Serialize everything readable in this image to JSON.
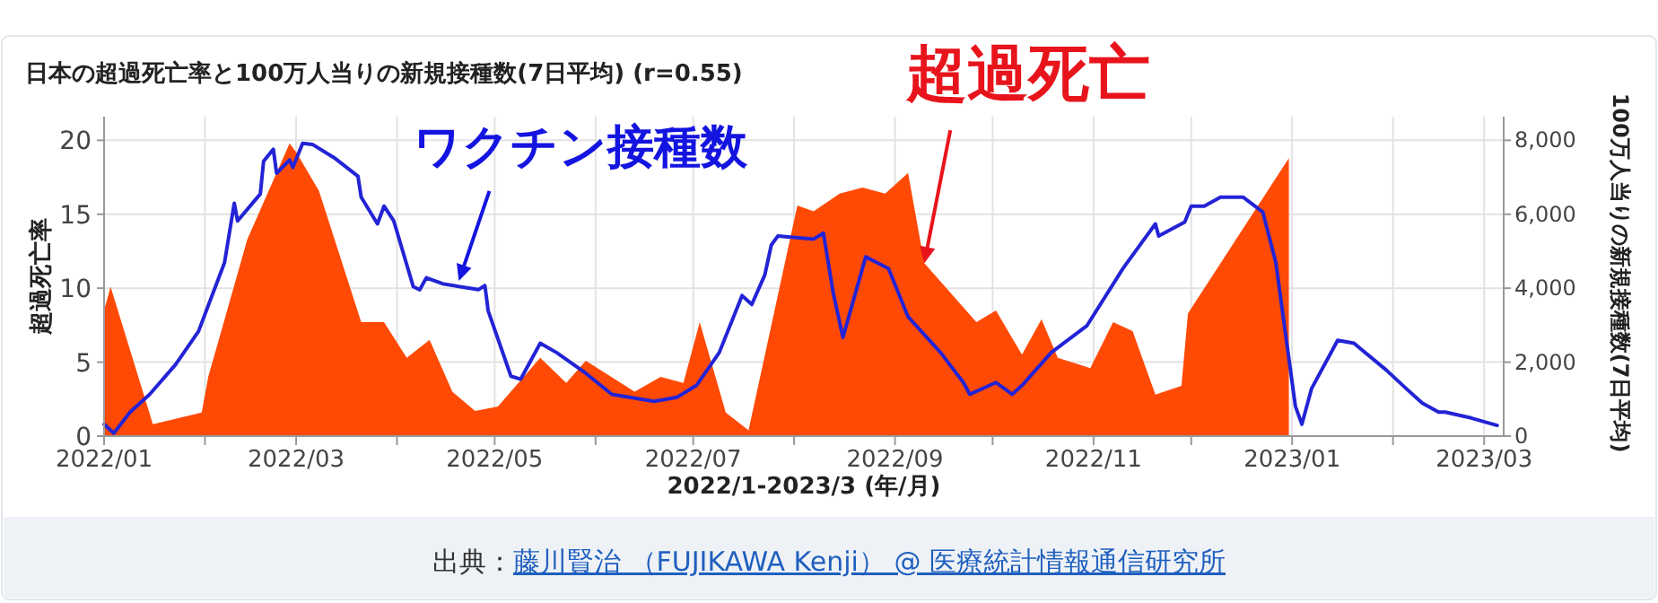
{
  "chart_data": {
    "type": "area",
    "title": "日本の超過死亡率と100万人当りの新規接種数(7日平均) (r=0.55)",
    "xlabel": "2022/1-2023/3 (年/月)",
    "ylabel": "超過死亡率",
    "y2label": "100万人当りの新規接種数(7日平均)",
    "xlim": [
      "2022-01-01",
      "2023-03-07"
    ],
    "xticks": [
      {
        "value": "2022-01",
        "label": "2022/01"
      },
      {
        "value": "2022-02",
        "label": null
      },
      {
        "value": "2022-03",
        "label": "2022/03"
      },
      {
        "value": "2022-04",
        "label": null
      },
      {
        "value": "2022-05",
        "label": "2022/05"
      },
      {
        "value": "2022-06",
        "label": null
      },
      {
        "value": "2022-07",
        "label": "2022/07"
      },
      {
        "value": "2022-08",
        "label": null
      },
      {
        "value": "2022-09",
        "label": "2022/09"
      },
      {
        "value": "2022-10",
        "label": null
      },
      {
        "value": "2022-11",
        "label": "2022/11"
      },
      {
        "value": "2022-12",
        "label": null
      },
      {
        "value": "2023-01",
        "label": "2023/01"
      },
      {
        "value": "2023-02",
        "label": null
      },
      {
        "value": "2023-03",
        "label": "2023/03"
      }
    ],
    "ylim": [
      0,
      21.6
    ],
    "yticks": [
      0,
      5,
      10,
      15,
      20
    ],
    "y2lim": [
      0,
      8640
    ],
    "y2ticks": [
      {
        "value": 0,
        "label": "0"
      },
      {
        "value": 2000,
        "label": "2,000"
      },
      {
        "value": 4000,
        "label": "4,000"
      },
      {
        "value": 6000,
        "label": "6,000"
      },
      {
        "value": 8000,
        "label": "8,000"
      }
    ],
    "grid": true,
    "series": [
      {
        "color": "#ff4a05",
        "x": [
          "2022-01-01",
          "2022-01-03",
          "2022-01-16",
          "2022-01-31",
          "2022-02-02",
          "2022-02-14",
          "2022-02-27",
          "2022-03-01",
          "2022-03-08",
          "2022-03-21",
          "2022-03-28",
          "2022-04-04",
          "2022-04-11",
          "2022-04-18",
          "2022-04-25",
          "2022-05-02",
          "2022-05-15",
          "2022-05-23",
          "2022-05-29",
          "2022-06-13",
          "2022-06-21",
          "2022-06-28",
          "2022-07-03",
          "2022-07-11",
          "2022-07-18",
          "2022-08-02",
          "2022-08-07",
          "2022-08-15",
          "2022-08-22",
          "2022-08-29",
          "2022-09-05",
          "2022-09-10",
          "2022-09-26",
          "2022-10-02",
          "2022-10-10",
          "2022-10-16",
          "2022-10-21",
          "2022-10-31",
          "2022-11-07",
          "2022-11-13",
          "2022-11-20",
          "2022-11-28",
          "2022-11-30",
          "2022-12-31"
        ],
        "values": [
          8.5,
          10.1,
          0.8,
          1.6,
          4,
          13.3,
          19.8,
          19.2,
          16.6,
          7.7,
          7.7,
          5.3,
          6.5,
          3.0,
          1.7,
          2.0,
          5.3,
          3.6,
          5.1,
          3.0,
          4.0,
          3.6,
          7.7,
          1.6,
          0.4,
          15.6,
          15.2,
          16.4,
          16.8,
          16.4,
          17.8,
          11.7,
          7.7,
          8.5,
          5.5,
          7.9,
          5.3,
          4.6,
          7.7,
          7.1,
          2.8,
          3.4,
          8.3,
          18.8
        ]
      },
      {
        "type": "line",
        "axis": "y2",
        "color": "#2323d6",
        "x": [
          "2022-01-01",
          "2022-01-04",
          "2022-01-09",
          "2022-01-15",
          "2022-01-23",
          "2022-01-30",
          "2022-02-07",
          "2022-02-10",
          "2022-02-11",
          "2022-02-18",
          "2022-02-19",
          "2022-02-22",
          "2022-02-23",
          "2022-02-27",
          "2022-02-28",
          "2022-03-03",
          "2022-03-06",
          "2022-03-13",
          "2022-03-20",
          "2022-03-21",
          "2022-03-26",
          "2022-03-28",
          "2022-03-31",
          "2022-04-06",
          "2022-04-08",
          "2022-04-10",
          "2022-04-15",
          "2022-04-26",
          "2022-04-28",
          "2022-04-29",
          "2022-05-06",
          "2022-05-09",
          "2022-05-15",
          "2022-05-20",
          "2022-05-29",
          "2022-06-06",
          "2022-06-19",
          "2022-06-26",
          "2022-07-02",
          "2022-07-09",
          "2022-07-16",
          "2022-07-19",
          "2022-07-23",
          "2022-07-25",
          "2022-07-27",
          "2022-08-07",
          "2022-08-10",
          "2022-08-13",
          "2022-08-16",
          "2022-08-23",
          "2022-08-30",
          "2022-09-05",
          "2022-09-15",
          "2022-09-22",
          "2022-09-24",
          "2022-09-29",
          "2022-10-02",
          "2022-10-07",
          "2022-10-10",
          "2022-10-19",
          "2022-10-30",
          "2022-11-10",
          "2022-11-20",
          "2022-11-21",
          "2022-11-29",
          "2022-12-01",
          "2022-12-05",
          "2022-12-10",
          "2022-12-17",
          "2022-12-23",
          "2022-12-27",
          "2023-01-02",
          "2023-01-04",
          "2023-01-07",
          "2023-01-15",
          "2023-01-20",
          "2023-01-30",
          "2023-02-05",
          "2023-02-10",
          "2023-02-15",
          "2023-02-17",
          "2023-02-25",
          "2023-03-05"
        ],
        "values": [
          320,
          80,
          650,
          1130,
          1940,
          2830,
          4690,
          6300,
          5820,
          6550,
          7430,
          7760,
          7110,
          7470,
          7270,
          7920,
          7890,
          7510,
          7030,
          6460,
          5740,
          6220,
          5820,
          4040,
          3960,
          4280,
          4120,
          3960,
          4070,
          3390,
          1620,
          1540,
          2510,
          2260,
          1700,
          1130,
          940,
          1050,
          1370,
          2260,
          3800,
          3560,
          4360,
          5170,
          5410,
          5330,
          5490,
          3880,
          2670,
          4850,
          4530,
          3230,
          2260,
          1450,
          1130,
          1330,
          1450,
          1130,
          1370,
          2260,
          2990,
          4530,
          5740,
          5410,
          5790,
          6220,
          6220,
          6460,
          6460,
          6060,
          4690,
          810,
          320,
          1290,
          2590,
          2510,
          1780,
          1290,
          890,
          650,
          650,
          490,
          290
        ]
      }
    ],
    "annotations": [
      {
        "text": "ワクチン接種数",
        "x": "2022-04-20",
        "y": 10.5
      },
      {
        "text": "超過死亡",
        "x": "2022-09-10",
        "y": 11.7
      },
      "出典：",
      "藤川賢治 （FUJIKAWA Kenji） @ 医療統計情報通信研究所"
    ]
  }
}
